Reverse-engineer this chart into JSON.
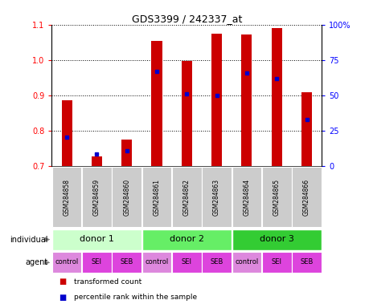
{
  "title": "GDS3399 / 242337_at",
  "samples": [
    "GSM284858",
    "GSM284859",
    "GSM284860",
    "GSM284861",
    "GSM284862",
    "GSM284863",
    "GSM284864",
    "GSM284865",
    "GSM284866"
  ],
  "red_values": [
    0.886,
    0.727,
    0.775,
    1.055,
    0.998,
    1.075,
    1.072,
    1.09,
    0.91
  ],
  "blue_values": [
    0.782,
    0.735,
    0.743,
    0.968,
    0.905,
    0.9,
    0.963,
    0.948,
    0.833
  ],
  "ylim": [
    0.7,
    1.1
  ],
  "yticks_left": [
    0.7,
    0.8,
    0.9,
    1.0,
    1.1
  ],
  "yticks_right_labels": [
    "0",
    "25",
    "50",
    "75",
    "100%"
  ],
  "donors": [
    {
      "label": "donor 1",
      "cols": [
        0,
        1,
        2
      ],
      "color": "#ccffcc"
    },
    {
      "label": "donor 2",
      "cols": [
        3,
        4,
        5
      ],
      "color": "#66ee66"
    },
    {
      "label": "donor 3",
      "cols": [
        6,
        7,
        8
      ],
      "color": "#33cc33"
    }
  ],
  "agents": [
    "control",
    "SEI",
    "SEB",
    "control",
    "SEI",
    "SEB",
    "control",
    "SEI",
    "SEB"
  ],
  "agent_bg_colors": [
    "#dd88dd",
    "#dd44dd",
    "#dd44dd",
    "#dd88dd",
    "#dd44dd",
    "#dd44dd",
    "#dd88dd",
    "#dd44dd",
    "#dd44dd"
  ],
  "bar_color": "#cc0000",
  "blue_color": "#0000cc",
  "sample_box_color": "#cccccc",
  "bar_width": 0.35
}
